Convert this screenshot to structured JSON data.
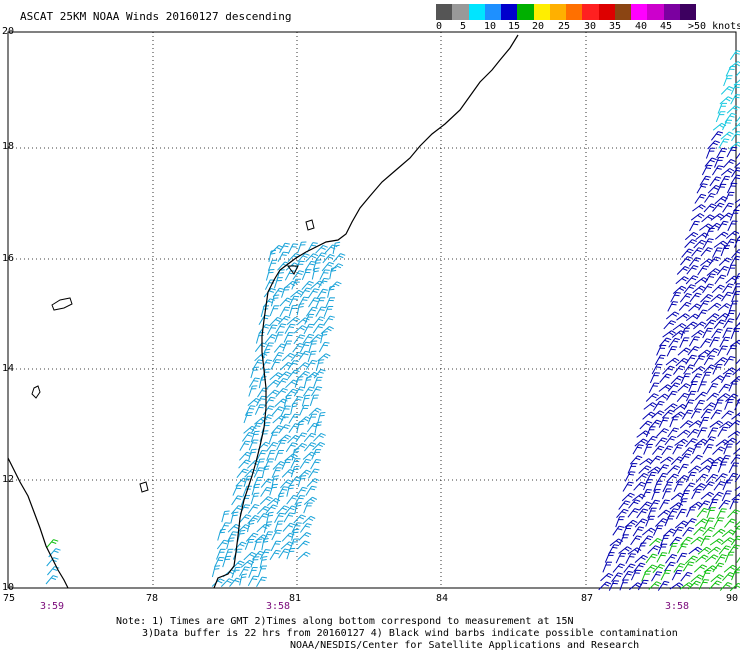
{
  "title": "ASCAT 25KM NOAA Winds 20160127 descending",
  "speed_scale": {
    "colors": [
      "#555555",
      "#999999",
      "#00e5ff",
      "#1e90ff",
      "#0000cc",
      "#00b000",
      "#ffee00",
      "#ffb000",
      "#ff7000",
      "#ff2020",
      "#dd0000",
      "#8b4513",
      "#ff00ff",
      "#cc00cc",
      "#7b00a0",
      "#3d0060"
    ],
    "labels": [
      "0",
      "5",
      "10",
      "15",
      "20",
      "25",
      "30",
      "35",
      "40",
      "45",
      ">50 knots"
    ]
  },
  "axes": {
    "lat_labels": [
      "20",
      "18",
      "16",
      "14",
      "12",
      "10"
    ],
    "lon_labels": [
      "75",
      "78",
      "81",
      "84",
      "87",
      "90"
    ],
    "pass_times": [
      "3:59",
      "3:58",
      "3:58"
    ]
  },
  "notes": {
    "line1": "Note: 1) Times are GMT 2)Times along bottom correspond to measurement at 15N",
    "line2": "3)Data buffer is 22 hrs from 20160127 4) Black wind barbs indicate possible contamination",
    "line3": "NOAA/NESDIS/Center for Satellite Applications and Research"
  },
  "swaths": [
    {
      "name": "coastal",
      "color": "#1aa3d9"
    },
    {
      "name": "eastern",
      "color": "#0000b0"
    },
    {
      "name": "eastern-cyan",
      "color": "#18c8e0"
    },
    {
      "name": "eastern-green",
      "color": "#10c010"
    }
  ]
}
